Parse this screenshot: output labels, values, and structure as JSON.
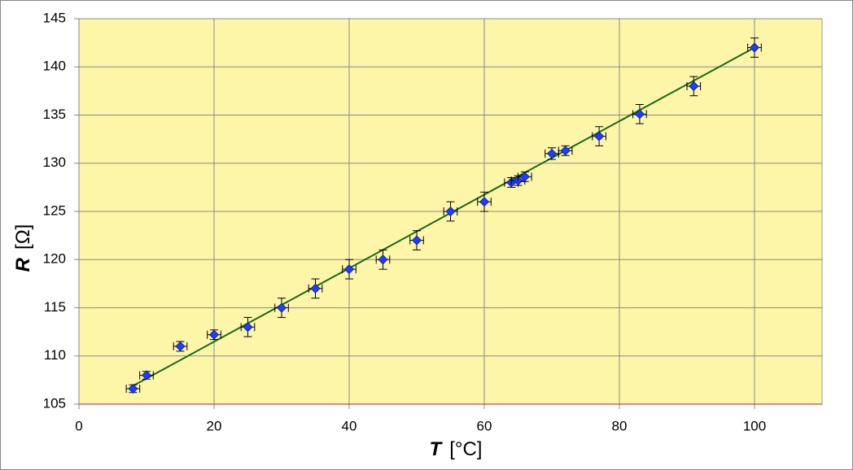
{
  "chart_data": {
    "type": "scatter",
    "x": [
      8,
      10,
      15,
      20,
      25,
      30,
      35,
      40,
      45,
      50,
      55,
      60,
      64,
      65,
      66,
      70,
      72,
      77,
      83,
      91,
      100
    ],
    "y": [
      106.6,
      108,
      111,
      112.2,
      113,
      115,
      117,
      119,
      120,
      122,
      125,
      126,
      128,
      128.2,
      128.6,
      131,
      131.3,
      132.8,
      135.1,
      138,
      142
    ],
    "yerr": [
      0.4,
      0.4,
      0.5,
      0.5,
      1,
      1,
      1,
      1,
      1,
      1,
      1,
      1,
      0.5,
      0.5,
      0.5,
      0.6,
      0.5,
      1,
      1,
      1,
      1
    ],
    "xerr": [
      1,
      1,
      1,
      1,
      1,
      1,
      1,
      1,
      1,
      1,
      1,
      1,
      1,
      1,
      1,
      1,
      1,
      1,
      1,
      1,
      1
    ],
    "color": "#1f3cff",
    "errorbar_color": "#000000",
    "trendline": {
      "x": [
        8,
        100
      ],
      "y": [
        106.9,
        142
      ],
      "color": "#156b15"
    },
    "xlabel": {
      "symbol": "T",
      "unit": "[°C]"
    },
    "ylabel": {
      "symbol": "R",
      "unit": "[Ω]"
    },
    "xlim": [
      0,
      110
    ],
    "ylim": [
      105,
      145
    ],
    "xticks": [
      0,
      20,
      40,
      60,
      80,
      100
    ],
    "yticks": [
      105,
      110,
      115,
      120,
      125,
      130,
      135,
      140,
      145
    ],
    "grid": true,
    "background": "#fdf5a8"
  }
}
